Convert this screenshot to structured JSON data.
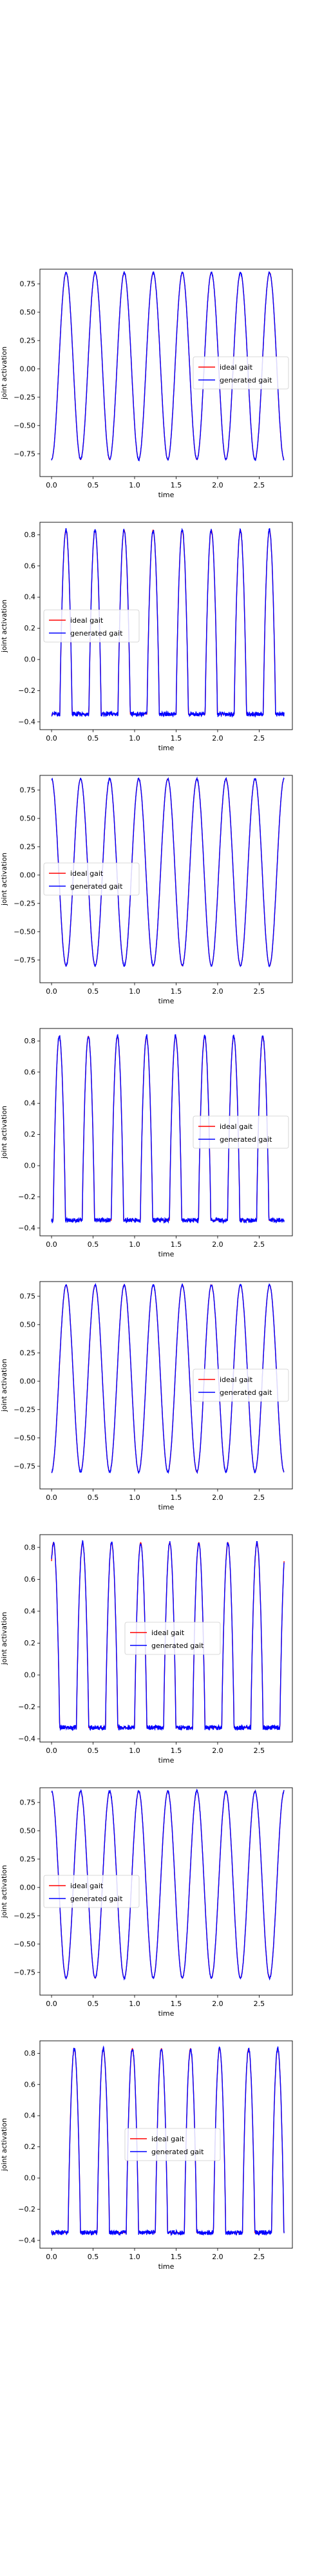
{
  "figure": {
    "background": "#ffffff",
    "axes_color": "#000000",
    "ideal_color": "#ff0000",
    "generated_color": "#0000ff"
  },
  "chart_data": [
    {
      "type": "line",
      "signal": "sine",
      "phase": 0.0,
      "period": 0.35,
      "xlabel": "time",
      "ylabel": "joint activation",
      "xlim": [
        -0.14,
        2.9
      ],
      "ylim": [
        -0.95,
        0.88
      ],
      "xticks": [
        0.0,
        0.5,
        1.0,
        1.5,
        2.0,
        2.5
      ],
      "yticks": [
        0.75,
        0.5,
        0.25,
        0.0,
        -0.25,
        -0.5,
        -0.75
      ],
      "ytick_labels": [
        "0.75",
        "0.50",
        "0.25",
        "0.00",
        "−0.25",
        "−0.50",
        "−0.75"
      ],
      "series": [
        {
          "name": "ideal gait",
          "color": "#ff0000",
          "x_range": [
            0,
            2.8
          ],
          "min": -0.8,
          "max": 0.85
        },
        {
          "name": "generated gait",
          "color": "#0000ff",
          "x_range": [
            0,
            2.8
          ],
          "min": -0.8,
          "max": 0.85
        }
      ],
      "legend": "center-right"
    },
    {
      "type": "line",
      "signal": "pulse",
      "phase": 0.1,
      "period": 0.35,
      "xlabel": "time",
      "ylabel": "joint activation",
      "xlim": [
        -0.14,
        2.9
      ],
      "ylim": [
        -0.45,
        0.88
      ],
      "xticks": [
        0.0,
        0.5,
        1.0,
        1.5,
        2.0,
        2.5
      ],
      "yticks": [
        0.8,
        0.6,
        0.4,
        0.2,
        0.0,
        -0.2,
        -0.4
      ],
      "ytick_labels": [
        "0.8",
        "0.6",
        "0.4",
        "0.2",
        "0.0",
        "−0.2",
        "−0.4"
      ],
      "series": [
        {
          "name": "ideal gait",
          "color": "#ff0000",
          "x_range": [
            0,
            2.8
          ],
          "min": -0.35,
          "max": 0.83
        },
        {
          "name": "generated gait",
          "color": "#0000ff",
          "x_range": [
            0,
            2.8
          ],
          "min": -0.35,
          "max": 0.83
        }
      ],
      "legend": "center-left"
    },
    {
      "type": "line",
      "signal": "sine",
      "phase": 0.175,
      "period": 0.35,
      "xlabel": "time",
      "ylabel": "joint activation",
      "xlim": [
        -0.14,
        2.9
      ],
      "ylim": [
        -0.95,
        0.88
      ],
      "xticks": [
        0.0,
        0.5,
        1.0,
        1.5,
        2.0,
        2.5
      ],
      "yticks": [
        0.75,
        0.5,
        0.25,
        0.0,
        -0.25,
        -0.5,
        -0.75
      ],
      "ytick_labels": [
        "0.75",
        "0.50",
        "0.25",
        "0.00",
        "−0.25",
        "−0.50",
        "−0.75"
      ],
      "series": [
        {
          "name": "ideal gait",
          "color": "#ff0000",
          "x_range": [
            0,
            2.8
          ],
          "min": -0.8,
          "max": 0.85
        },
        {
          "name": "generated gait",
          "color": "#0000ff",
          "x_range": [
            0,
            2.8
          ],
          "min": -0.8,
          "max": 0.85
        }
      ],
      "legend": "center-left"
    },
    {
      "type": "line",
      "signal": "pulse",
      "phase": 0.02,
      "period": 0.35,
      "xlabel": "time",
      "ylabel": "joint activation",
      "xlim": [
        -0.14,
        2.9
      ],
      "ylim": [
        -0.45,
        0.88
      ],
      "xticks": [
        0.0,
        0.5,
        1.0,
        1.5,
        2.0,
        2.5
      ],
      "yticks": [
        0.8,
        0.6,
        0.4,
        0.2,
        0.0,
        -0.2,
        -0.4
      ],
      "ytick_labels": [
        "0.8",
        "0.6",
        "0.4",
        "0.2",
        "0.0",
        "−0.2",
        "−0.4"
      ],
      "series": [
        {
          "name": "ideal gait",
          "color": "#ff0000",
          "x_range": [
            0,
            2.8
          ],
          "min": -0.35,
          "max": 0.83
        },
        {
          "name": "generated gait",
          "color": "#0000ff",
          "x_range": [
            0,
            2.8
          ],
          "min": -0.35,
          "max": 0.83
        }
      ],
      "legend": "center-right"
    },
    {
      "type": "line",
      "signal": "sine",
      "phase": 0.0,
      "period": 0.35,
      "xlabel": "time",
      "ylabel": "joint activation",
      "xlim": [
        -0.14,
        2.9
      ],
      "ylim": [
        -0.95,
        0.88
      ],
      "xticks": [
        0.0,
        0.5,
        1.0,
        1.5,
        2.0,
        2.5
      ],
      "yticks": [
        0.75,
        0.5,
        0.25,
        0.0,
        -0.25,
        -0.5,
        -0.75
      ],
      "ytick_labels": [
        "0.75",
        "0.50",
        "0.25",
        "0.00",
        "−0.25",
        "−0.50",
        "−0.75"
      ],
      "series": [
        {
          "name": "ideal gait",
          "color": "#ff0000",
          "x_range": [
            0,
            2.8
          ],
          "min": -0.8,
          "max": 0.85
        },
        {
          "name": "generated gait",
          "color": "#0000ff",
          "x_range": [
            0,
            2.8
          ],
          "min": -0.8,
          "max": 0.85
        }
      ],
      "legend": "center-right"
    },
    {
      "type": "line",
      "signal": "pulse",
      "phase": 0.3,
      "period": 0.35,
      "xlabel": "time",
      "ylabel": "joint activation",
      "xlim": [
        -0.14,
        2.9
      ],
      "ylim": [
        -0.42,
        0.88
      ],
      "xticks": [
        0.0,
        0.5,
        1.0,
        1.5,
        2.0,
        2.5
      ],
      "yticks": [
        0.8,
        0.6,
        0.4,
        0.2,
        0.0,
        -0.2,
        -0.4
      ],
      "ytick_labels": [
        "0.8",
        "0.6",
        "0.4",
        "0.2",
        "0.0",
        "−0.2",
        "−0.4"
      ],
      "series": [
        {
          "name": "ideal gait",
          "color": "#ff0000",
          "x_range": [
            0,
            2.8
          ],
          "min": -0.33,
          "max": 0.83
        },
        {
          "name": "generated gait",
          "color": "#0000ff",
          "x_range": [
            0,
            2.8
          ],
          "min": -0.33,
          "max": 0.83
        }
      ],
      "legend": "center"
    },
    {
      "type": "line",
      "signal": "sine",
      "phase": 0.175,
      "period": 0.35,
      "xlabel": "time",
      "ylabel": "joint activation",
      "xlim": [
        -0.14,
        2.9
      ],
      "ylim": [
        -0.95,
        0.88
      ],
      "xticks": [
        0.0,
        0.5,
        1.0,
        1.5,
        2.0,
        2.5
      ],
      "yticks": [
        0.75,
        0.5,
        0.25,
        0.0,
        -0.25,
        -0.5,
        -0.75
      ],
      "ytick_labels": [
        "0.75",
        "0.50",
        "0.25",
        "0.00",
        "−0.25",
        "−0.50",
        "−0.75"
      ],
      "series": [
        {
          "name": "ideal gait",
          "color": "#ff0000",
          "x_range": [
            0,
            2.8
          ],
          "min": -0.8,
          "max": 0.85
        },
        {
          "name": "generated gait",
          "color": "#0000ff",
          "x_range": [
            0,
            2.8
          ],
          "min": -0.8,
          "max": 0.85
        }
      ],
      "legend": "center-left"
    },
    {
      "type": "line",
      "signal": "pulse",
      "phase": 0.2,
      "period": 0.35,
      "xlabel": "time",
      "ylabel": "joint activation",
      "xlim": [
        -0.14,
        2.9
      ],
      "ylim": [
        -0.45,
        0.88
      ],
      "xticks": [
        0.0,
        0.5,
        1.0,
        1.5,
        2.0,
        2.5
      ],
      "yticks": [
        0.8,
        0.6,
        0.4,
        0.2,
        0.0,
        -0.2,
        -0.4
      ],
      "ytick_labels": [
        "0.8",
        "0.6",
        "0.4",
        "0.2",
        "0.0",
        "−0.2",
        "−0.4"
      ],
      "series": [
        {
          "name": "ideal gait",
          "color": "#ff0000",
          "x_range": [
            0,
            2.8
          ],
          "min": -0.35,
          "max": 0.83
        },
        {
          "name": "generated gait",
          "color": "#0000ff",
          "x_range": [
            0,
            2.8
          ],
          "min": -0.35,
          "max": 0.83
        }
      ],
      "legend": "center"
    }
  ]
}
